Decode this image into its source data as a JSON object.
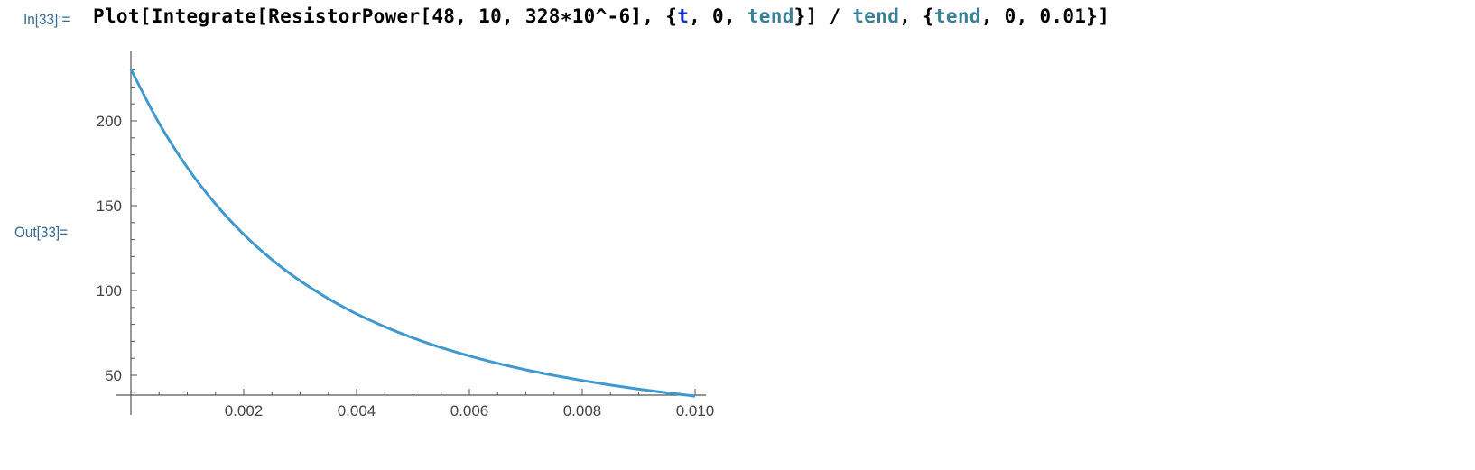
{
  "cell": {
    "in_label": "In[33]:=",
    "out_label": "Out[33]=",
    "code_tokens": [
      {
        "text": "Plot[Integrate[ResistorPower[48, 10, 328",
        "kind": "plain"
      },
      {
        "text": "∗",
        "kind": "plain"
      },
      {
        "text": "10^-6], {",
        "kind": "plain"
      },
      {
        "text": "t",
        "kind": "loc"
      },
      {
        "text": ", 0, ",
        "kind": "plain"
      },
      {
        "text": "tend",
        "kind": "var"
      },
      {
        "text": "}] / ",
        "kind": "plain"
      },
      {
        "text": "tend",
        "kind": "var"
      },
      {
        "text": ", {",
        "kind": "plain"
      },
      {
        "text": "tend",
        "kind": "var"
      },
      {
        "text": ", 0, 0.01}]",
        "kind": "plain"
      }
    ]
  },
  "colors": {
    "curve": "#3f98ce",
    "axis": "#555555",
    "label": "#3b6a92"
  },
  "chart_data": {
    "type": "line",
    "title": "",
    "xlabel": "",
    "ylabel": "",
    "xlim": [
      0,
      0.01
    ],
    "ylim": [
      38.3,
      232
    ],
    "grid": false,
    "x_ticks": [
      0.002,
      0.004,
      0.006,
      0.008,
      0.01
    ],
    "x_tick_labels": [
      "0.002",
      "0.004",
      "0.006",
      "0.008",
      "0.010"
    ],
    "y_ticks": [
      50,
      100,
      150,
      200
    ],
    "y_tick_labels": [
      "50",
      "100",
      "150",
      "200"
    ],
    "series": [
      {
        "x": [
          0,
          0.0005,
          0.001,
          0.0015,
          0.002,
          0.0025,
          0.003,
          0.0035,
          0.004,
          0.0045,
          0.005,
          0.0055,
          0.006,
          0.0065,
          0.007,
          0.0075,
          0.008,
          0.0085,
          0.009,
          0.0095,
          0.01
        ],
        "y": [
          230.4,
          198.6,
          172.5,
          151.0,
          133.1,
          118.2,
          105.7,
          95.2,
          86.2,
          78.6,
          72.0,
          66.3,
          61.4,
          57.0,
          53.2,
          49.9,
          46.9,
          44.2,
          41.8,
          39.7,
          37.7
        ]
      }
    ]
  }
}
